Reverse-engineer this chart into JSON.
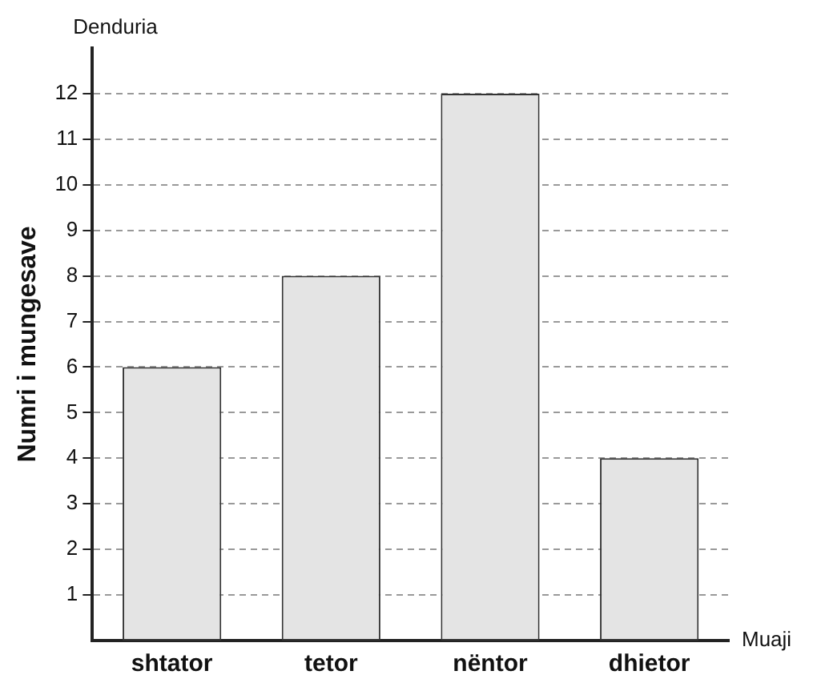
{
  "chart_data": {
    "type": "bar",
    "categories": [
      "shtator",
      "tetor",
      "nëntor",
      "dhietor"
    ],
    "values": [
      6,
      8,
      12,
      4
    ],
    "color": "#e4e4e4",
    "ylabel": "Numri i mungesave",
    "xlabel": "Muaji",
    "annotations": [
      "Denduria"
    ],
    "ylim": [
      0,
      13
    ],
    "yticks": [
      1,
      2,
      3,
      4,
      5,
      6,
      7,
      8,
      9,
      10,
      11,
      12
    ],
    "grid": "y",
    "line_style": "dashed"
  }
}
